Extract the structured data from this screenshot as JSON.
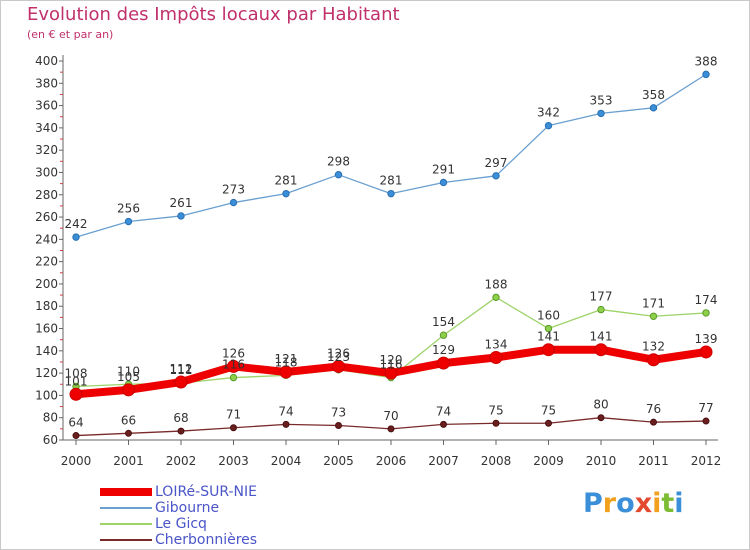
{
  "title": "Evolution des Impôts locaux par Habitant",
  "subtitle": "(en € et par an)",
  "logo": {
    "text": "Proxiti",
    "letters": [
      {
        "ch": "P",
        "color": "#3a8fd8"
      },
      {
        "ch": "r",
        "color": "#f2a11f"
      },
      {
        "ch": "o",
        "color": "#3a8fd8"
      },
      {
        "ch": "x",
        "color": "#e3492e"
      },
      {
        "ch": "i",
        "color": "#f2a11f"
      },
      {
        "ch": "t",
        "color": "#7cbd34"
      },
      {
        "ch": "i",
        "color": "#3a8fd8"
      }
    ]
  },
  "chart_data": {
    "type": "line",
    "title": "Evolution des Impôts locaux par Habitant",
    "subtitle": "(en € et par an)",
    "xlabel": "",
    "ylabel": "",
    "x": [
      2000,
      2001,
      2002,
      2003,
      2004,
      2005,
      2006,
      2007,
      2008,
      2009,
      2010,
      2011,
      2012
    ],
    "ylim": [
      60,
      400
    ],
    "yticks": [
      60,
      80,
      100,
      120,
      140,
      160,
      180,
      200,
      220,
      240,
      260,
      280,
      300,
      320,
      340,
      360,
      380,
      400
    ],
    "grid": false,
    "legend": "bottom-left",
    "series": [
      {
        "name": "LOIRé-SUR-NIE",
        "color": "#ee0000",
        "values": [
          101,
          105,
          112,
          126,
          121,
          126,
          120,
          129,
          134,
          141,
          141,
          132,
          139
        ]
      },
      {
        "name": "Gibourne",
        "color": "#6a9fd0",
        "values": [
          242,
          256,
          261,
          273,
          281,
          298,
          281,
          291,
          297,
          342,
          353,
          358,
          388
        ]
      },
      {
        "name": "Le Gicq",
        "color": "#9ed36a",
        "values": [
          108,
          110,
          111,
          116,
          118,
          123,
          116,
          154,
          188,
          160,
          177,
          171,
          174
        ]
      },
      {
        "name": "Cherbonnières",
        "color": "#7a2a2a",
        "values": [
          64,
          66,
          68,
          71,
          74,
          73,
          70,
          74,
          75,
          75,
          80,
          76,
          77
        ]
      }
    ]
  }
}
